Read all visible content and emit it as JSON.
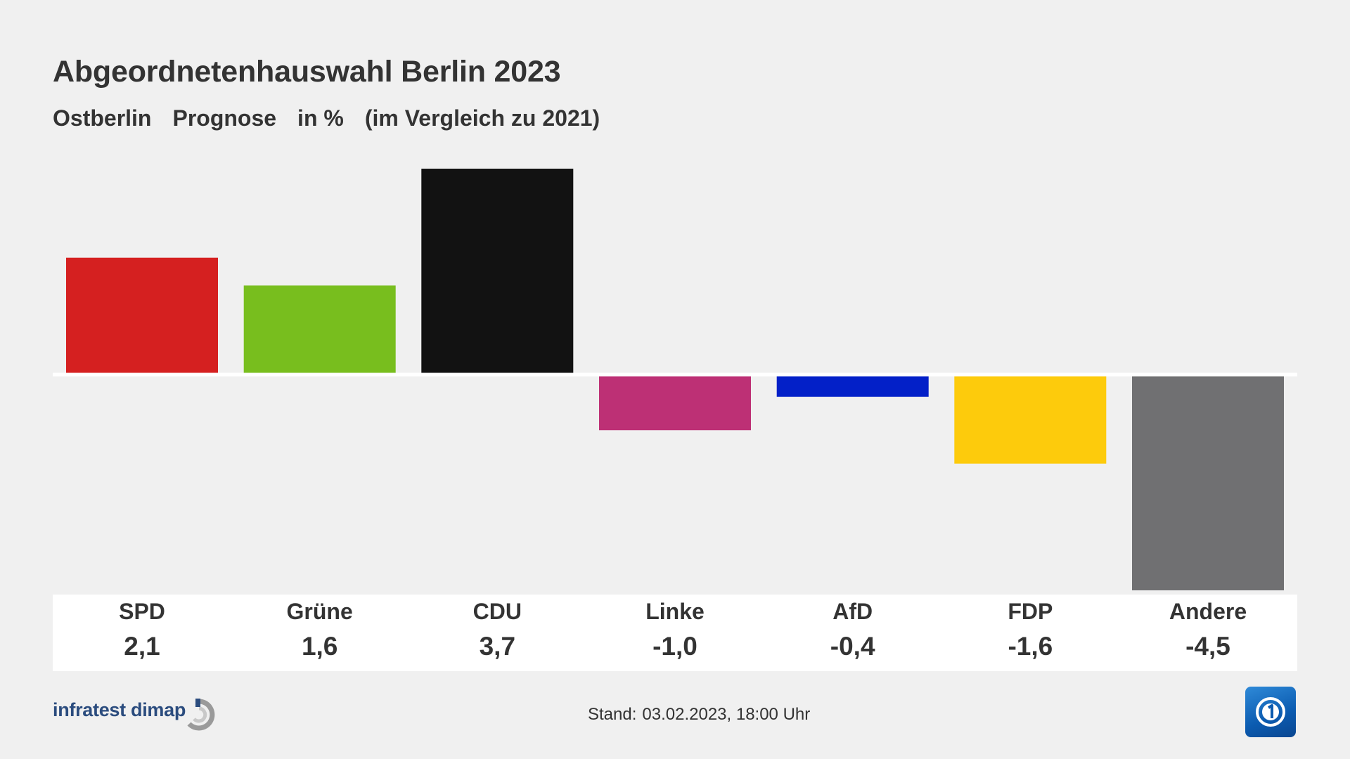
{
  "title": "Abgeordnetenhauswahl Berlin 2023",
  "subtitle": {
    "region": "Ostberlin",
    "kind": "Prognose",
    "unit": "in %",
    "comparison": "(im Vergleich zu 2021)"
  },
  "chart_data": {
    "type": "bar",
    "title": "Abgeordnetenhauswahl Berlin 2023",
    "subtitle": "Ostberlin Prognose in % (im Vergleich zu 2021)",
    "xlabel": "",
    "ylabel": "",
    "ylim": [
      -4.5,
      3.7
    ],
    "grid": false,
    "categories": [
      "SPD",
      "Grüne",
      "CDU",
      "Linke",
      "AfD",
      "FDP",
      "Andere"
    ],
    "values": [
      2.1,
      1.6,
      3.7,
      -1.0,
      -0.4,
      -1.6,
      -4.5
    ],
    "value_labels": [
      "2,1",
      "1,6",
      "3,7",
      "-1,0",
      "-0,4",
      "-1,6",
      "-4,5"
    ],
    "colors": [
      "#d52020",
      "#78be1e",
      "#121212",
      "#bd3075",
      "#0320c8",
      "#fdcb0c",
      "#707072"
    ]
  },
  "footer": {
    "source": "infratest dimap",
    "stand_label": "Stand:",
    "stand_value": "03.02.2023, 18:00 Uhr"
  },
  "icons": {
    "source_logo": "infratest-dimap-logo-icon",
    "broadcaster_logo": "ard-das-erste-logo-icon"
  }
}
